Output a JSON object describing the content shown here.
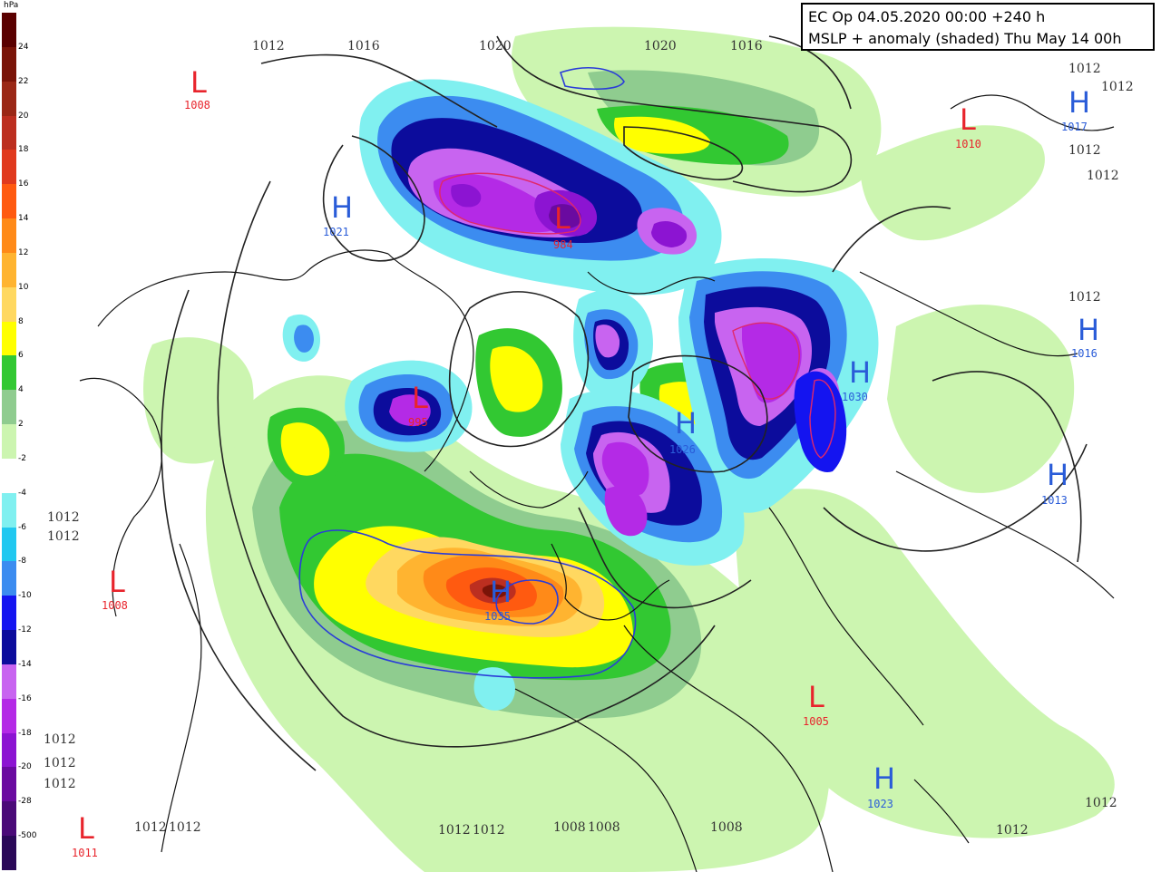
{
  "header": {
    "line1": "EC Op 04.05.2020 00:00 +240 h",
    "line2": "MSLP + anomaly (shaded) Thu May 14 00h"
  },
  "legend": {
    "unit": "hPa",
    "labels": [
      "24",
      "22",
      "20",
      "18",
      "16",
      "14",
      "12",
      "10",
      "8",
      "6",
      "4",
      "2",
      "-2",
      "-4",
      "-6",
      "-8",
      "-10",
      "-12",
      "-14",
      "-16",
      "-18",
      "-20",
      "-28",
      "-500"
    ],
    "colors": [
      "#5a0000",
      "#7a1408",
      "#9a2816",
      "#bc2f20",
      "#e03a1e",
      "#ff5a10",
      "#ff8a18",
      "#ffb430",
      "#ffd860",
      "#ffff00",
      "#32c832",
      "#8fcc8f",
      "#ccf5b0",
      "#ffffff",
      "#80f0f0",
      "#20c8f0",
      "#3c8cf0",
      "#1414f0",
      "#0c0c9c",
      "#c864f0",
      "#b42ae6",
      "#8c14d2",
      "#6a0aa0",
      "#4a0a78",
      "#2a0858"
    ]
  },
  "isobar_labels": [
    "1012",
    "1016",
    "1020",
    "1020",
    "1016",
    "1012",
    "1012",
    "1012",
    "1012",
    "1012",
    "1012",
    "1012",
    "1012",
    "1012",
    "1012",
    "1012",
    "1012",
    "1008",
    "1008",
    "1008",
    "1012",
    "1012",
    "1012",
    "1012"
  ],
  "centers": [
    {
      "type": "L",
      "value": "1008",
      "color": "#e8242c"
    },
    {
      "type": "H",
      "value": "1021",
      "color": "#2a5cd8"
    },
    {
      "type": "L",
      "value": "984",
      "color": "#e8242c"
    },
    {
      "type": "L",
      "value": "1010",
      "color": "#e8242c"
    },
    {
      "type": "H",
      "value": "1017",
      "color": "#2a5cd8"
    },
    {
      "type": "H",
      "value": "1016",
      "color": "#2a5cd8"
    },
    {
      "type": "L",
      "value": "995",
      "color": "#e8242c"
    },
    {
      "type": "H",
      "value": "1026",
      "color": "#2a5cd8"
    },
    {
      "type": "H",
      "value": "1030",
      "color": "#2a5cd8"
    },
    {
      "type": "H",
      "value": "1013",
      "color": "#2a5cd8"
    },
    {
      "type": "L",
      "value": "1008",
      "color": "#e8242c"
    },
    {
      "type": "H",
      "value": "1035",
      "color": "#2a5cd8"
    },
    {
      "type": "L",
      "value": "1005",
      "color": "#e8242c"
    },
    {
      "type": "H",
      "value": "1023",
      "color": "#2a5cd8"
    },
    {
      "type": "L",
      "value": "1011",
      "color": "#e8242c"
    }
  ]
}
